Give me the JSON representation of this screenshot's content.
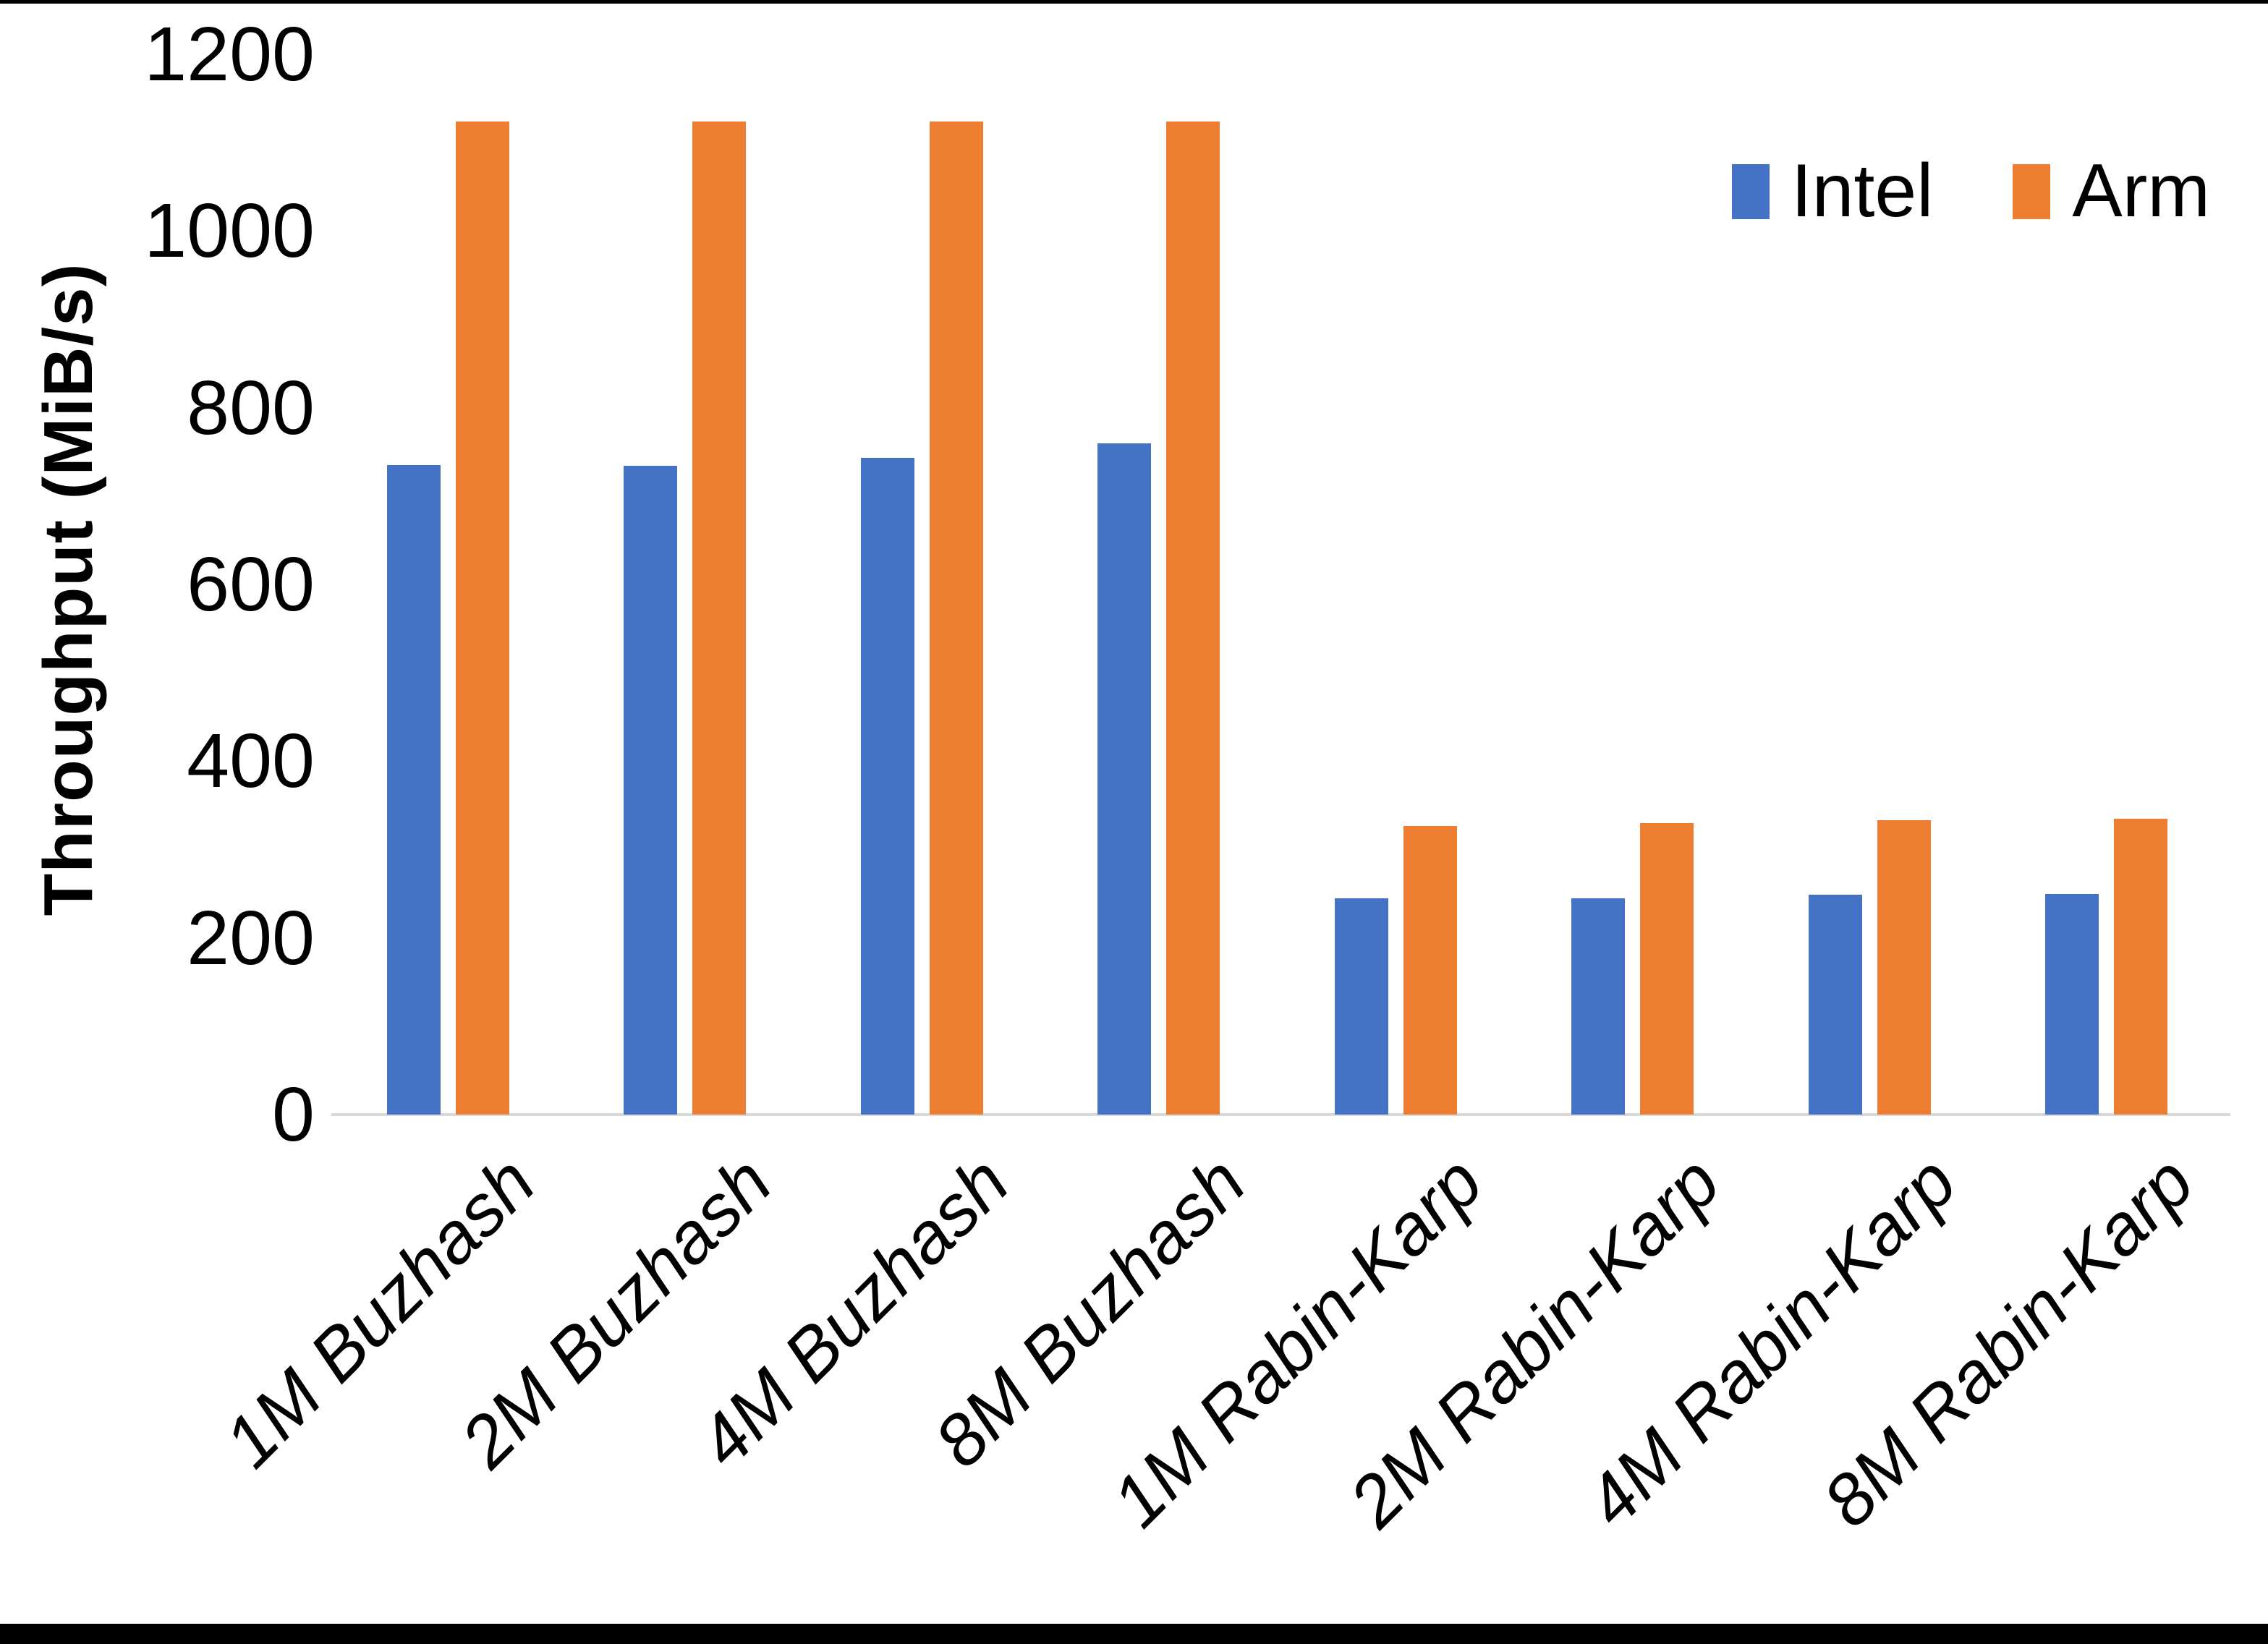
{
  "chart_data": {
    "type": "bar",
    "title": "",
    "ylabel": "Throughput (MiB/s)",
    "xlabel": "",
    "categories": [
      "1M Buzhash",
      "2M Buzhash",
      "4M Buzhash",
      "8M Buzhash",
      "1M Rabin-Karp",
      "2M Rabin-Karp",
      "4M Rabin-Karp",
      "8M Rabin-Karp"
    ],
    "series": [
      {
        "name": "Intel",
        "color": "#4472C4",
        "values": [
          735,
          734,
          743,
          760,
          245,
          245,
          249,
          250
        ]
      },
      {
        "name": "Arm",
        "color": "#ED7D31",
        "values": [
          1124,
          1124,
          1124,
          1124,
          327,
          330,
          333,
          335
        ]
      }
    ],
    "y_ticks": [
      0,
      200,
      400,
      600,
      800,
      1000,
      1200
    ],
    "ylim": [
      0,
      1200
    ],
    "grid": false,
    "legend_position": "top-right",
    "axis_line_color": "#D9D9D9",
    "background": "#FFFFFF",
    "frame_border_color": "#000000"
  }
}
